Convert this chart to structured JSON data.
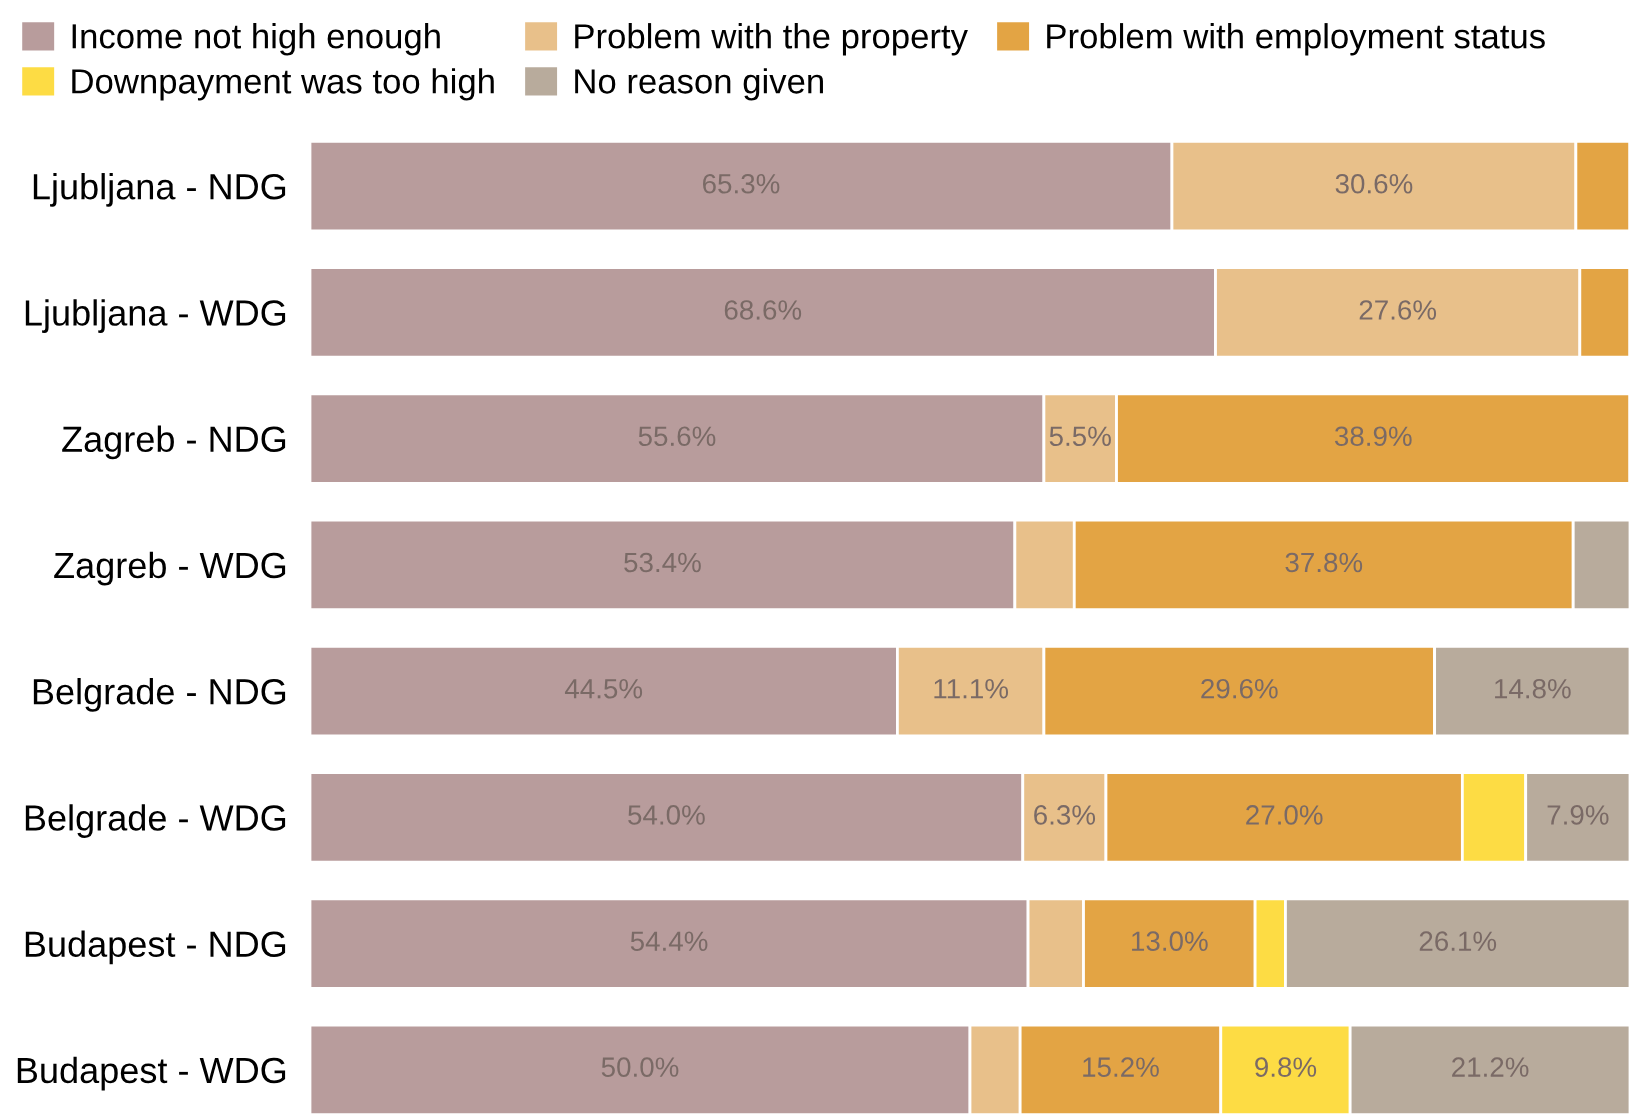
{
  "chart_data": {
    "type": "bar",
    "orientation": "horizontal",
    "stacked": true,
    "legend": "top",
    "tick_labels": "y",
    "categories": [
      "Ljubljana - NDG",
      "Ljubljana - WDG",
      "Zagreb - NDG",
      "Zagreb - WDG",
      "Belgrade - NDG",
      "Belgrade - WDG",
      "Budapest - NDG",
      "Budapest - WDG"
    ],
    "series": [
      {
        "name": "Income not high enough",
        "color": "#b89c9c",
        "values": [
          65.3,
          68.6,
          55.6,
          53.4,
          44.5,
          54.0,
          54.4,
          50.0
        ],
        "value_labels": [
          "65.3%",
          "68.6%",
          "55.6%",
          "53.4%",
          "44.5%",
          "54.0%",
          "54.4%",
          "50.0%"
        ]
      },
      {
        "name": "Problem with the property",
        "color": "#e8c08a",
        "values": [
          30.6,
          27.6,
          5.5,
          4.5,
          11.1,
          6.3,
          4.2,
          3.8
        ],
        "value_labels": [
          "30.6%",
          "27.6%",
          "5.5%",
          null,
          "11.1%",
          "6.3%",
          null,
          null
        ]
      },
      {
        "name": "Problem with employment status",
        "color": "#e3a444",
        "values": [
          4.1,
          3.8,
          38.9,
          37.8,
          29.6,
          27.0,
          13.0,
          15.2
        ],
        "value_labels": [
          null,
          null,
          "38.9%",
          "37.8%",
          "29.6%",
          "27.0%",
          "13.0%",
          "15.2%"
        ]
      },
      {
        "name": "Downpayment was too high",
        "color": "#fddc44",
        "values": [
          null,
          null,
          null,
          null,
          null,
          4.8,
          2.3,
          9.8
        ],
        "value_labels": [
          null,
          null,
          null,
          null,
          null,
          null,
          null,
          "9.8%"
        ]
      },
      {
        "name": "No reason given",
        "color": "#b8ab9c",
        "values": [
          null,
          null,
          null,
          4.3,
          14.8,
          7.9,
          26.1,
          21.2
        ],
        "value_labels": [
          null,
          null,
          null,
          null,
          "14.8%",
          "7.9%",
          "26.1%",
          "21.2%"
        ]
      }
    ]
  }
}
